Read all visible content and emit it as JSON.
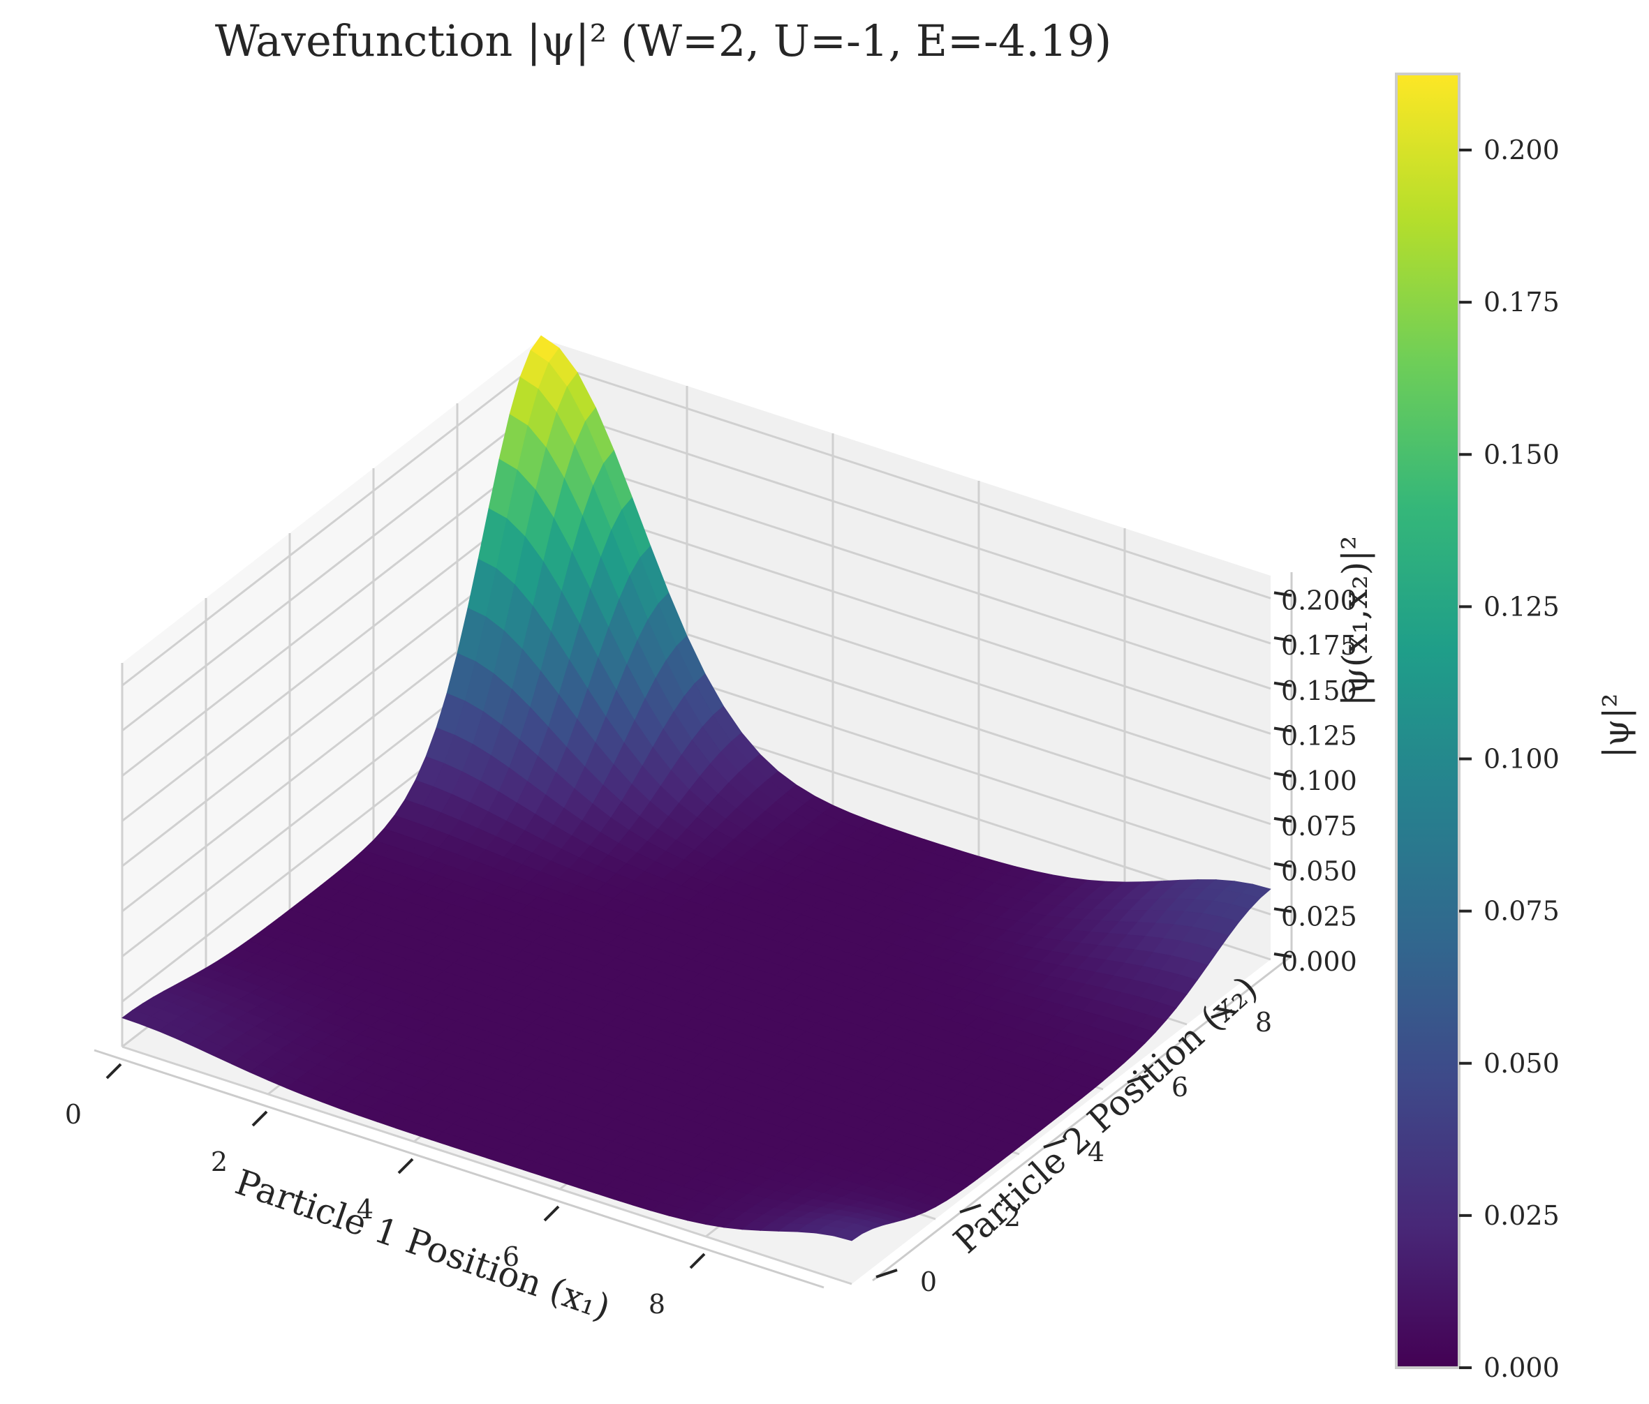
{
  "chart_data": {
    "type": "surface3d",
    "title": "Wavefunction |ψ|² (W=2, U=-1, E=-4.19)",
    "xlabel": "Particle 1 Position (x₁)",
    "ylabel": "Particle 2 Position (x₂)",
    "zlabel": "|ψ(x₁,x₂)|²",
    "x_range": [
      0,
      10
    ],
    "y_range": [
      0,
      10
    ],
    "zlim": [
      0,
      0.2125
    ],
    "x_ticks": [
      "0",
      "2",
      "4",
      "6",
      "8"
    ],
    "x_tick_values": [
      0,
      2,
      4,
      6,
      8
    ],
    "y_ticks": [
      "0",
      "2",
      "4",
      "6",
      "8"
    ],
    "y_tick_values": [
      0,
      2,
      4,
      6,
      8
    ],
    "z_ticks": [
      "0.000",
      "0.025",
      "0.050",
      "0.075",
      "0.100",
      "0.125",
      "0.150",
      "0.175",
      "0.200"
    ],
    "z_tick_values": [
      0,
      0.025,
      0.05,
      0.075,
      0.1,
      0.125,
      0.15,
      0.175,
      0.2
    ],
    "grid": true,
    "colormap": "viridis",
    "colorbar": {
      "label": "|ψ|²",
      "ticks": [
        "0.000",
        "0.025",
        "0.050",
        "0.075",
        "0.100",
        "0.125",
        "0.150",
        "0.175",
        "0.200"
      ],
      "tick_values": [
        0,
        0.025,
        0.05,
        0.075,
        0.1,
        0.125,
        0.15,
        0.175,
        0.2
      ],
      "range": [
        0,
        0.2125
      ]
    },
    "peaks": [
      {
        "x1": 0,
        "x2": 10,
        "value": 0.21
      },
      {
        "x1": 10,
        "x2": 10,
        "value": 0.035
      },
      {
        "x1": 10,
        "x2": 0,
        "value": 0.02
      },
      {
        "x1": 0,
        "x2": 0,
        "value": 0.012
      }
    ]
  }
}
